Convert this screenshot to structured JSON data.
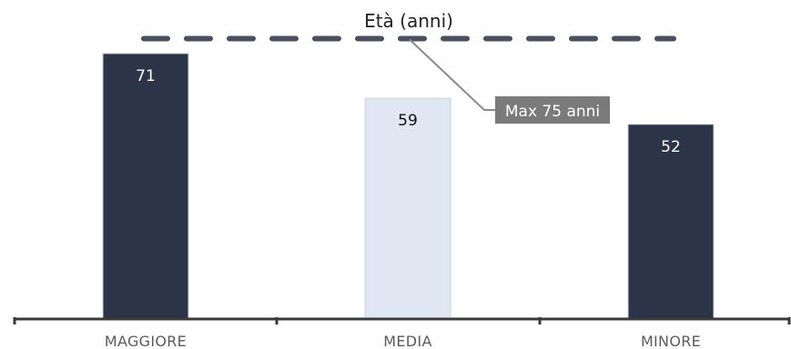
{
  "chart_data": {
    "type": "bar",
    "title": "Età (anni)",
    "categories": [
      "MAGGIORE",
      "MEDIA",
      "MINORE"
    ],
    "values": [
      71,
      59,
      52
    ],
    "bar_colors": [
      "#2c3447",
      "#e1e6f3",
      "#2c3447"
    ],
    "label_colors": [
      "#ffffff",
      "#111111",
      "#ffffff"
    ],
    "reference_line": {
      "value": 75,
      "label": "Max 75 anni",
      "color": "#4a5060",
      "style": "dashed"
    },
    "xlabel": "",
    "ylabel": "",
    "ylim": [
      0,
      80
    ],
    "grid": false,
    "legend": "none",
    "axis_color": "#3a3a3a"
  }
}
